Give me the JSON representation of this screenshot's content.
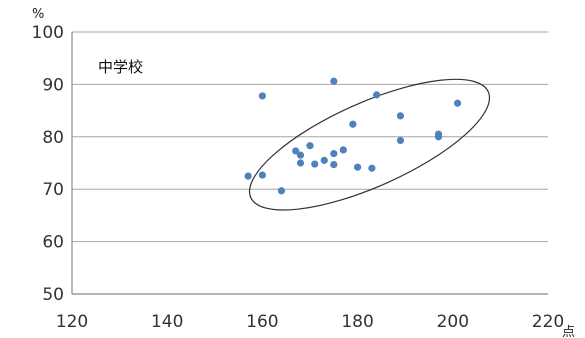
{
  "chart_data": {
    "type": "scatter",
    "in_chart_label": "中学校",
    "y_unit": "%",
    "x_unit": "点",
    "xlim": [
      120,
      220
    ],
    "ylim": [
      50,
      100
    ],
    "x_ticks": [
      120,
      140,
      160,
      180,
      200,
      220
    ],
    "y_ticks": [
      50,
      60,
      70,
      80,
      90,
      100
    ],
    "grid": "horizontal",
    "marker_color": "#4f81bd",
    "points": [
      {
        "x": 157,
        "y": 72.5
      },
      {
        "x": 160,
        "y": 72.7
      },
      {
        "x": 160,
        "y": 87.8
      },
      {
        "x": 164,
        "y": 69.7
      },
      {
        "x": 167,
        "y": 77.3
      },
      {
        "x": 168,
        "y": 76.5
      },
      {
        "x": 168,
        "y": 75.0
      },
      {
        "x": 170,
        "y": 78.3
      },
      {
        "x": 171,
        "y": 74.8
      },
      {
        "x": 173,
        "y": 75.5
      },
      {
        "x": 175,
        "y": 74.7
      },
      {
        "x": 175,
        "y": 76.8
      },
      {
        "x": 175,
        "y": 90.6
      },
      {
        "x": 177,
        "y": 77.5
      },
      {
        "x": 179,
        "y": 82.4
      },
      {
        "x": 180,
        "y": 74.2
      },
      {
        "x": 183,
        "y": 74.0
      },
      {
        "x": 184,
        "y": 88.0
      },
      {
        "x": 189,
        "y": 79.3
      },
      {
        "x": 189,
        "y": 84.0
      },
      {
        "x": 197,
        "y": 80.0
      },
      {
        "x": 197,
        "y": 80.5
      },
      {
        "x": 201,
        "y": 86.4
      }
    ],
    "ellipse": {
      "center_x": 182.5,
      "center_y": 78.5,
      "color": "#333333"
    }
  }
}
